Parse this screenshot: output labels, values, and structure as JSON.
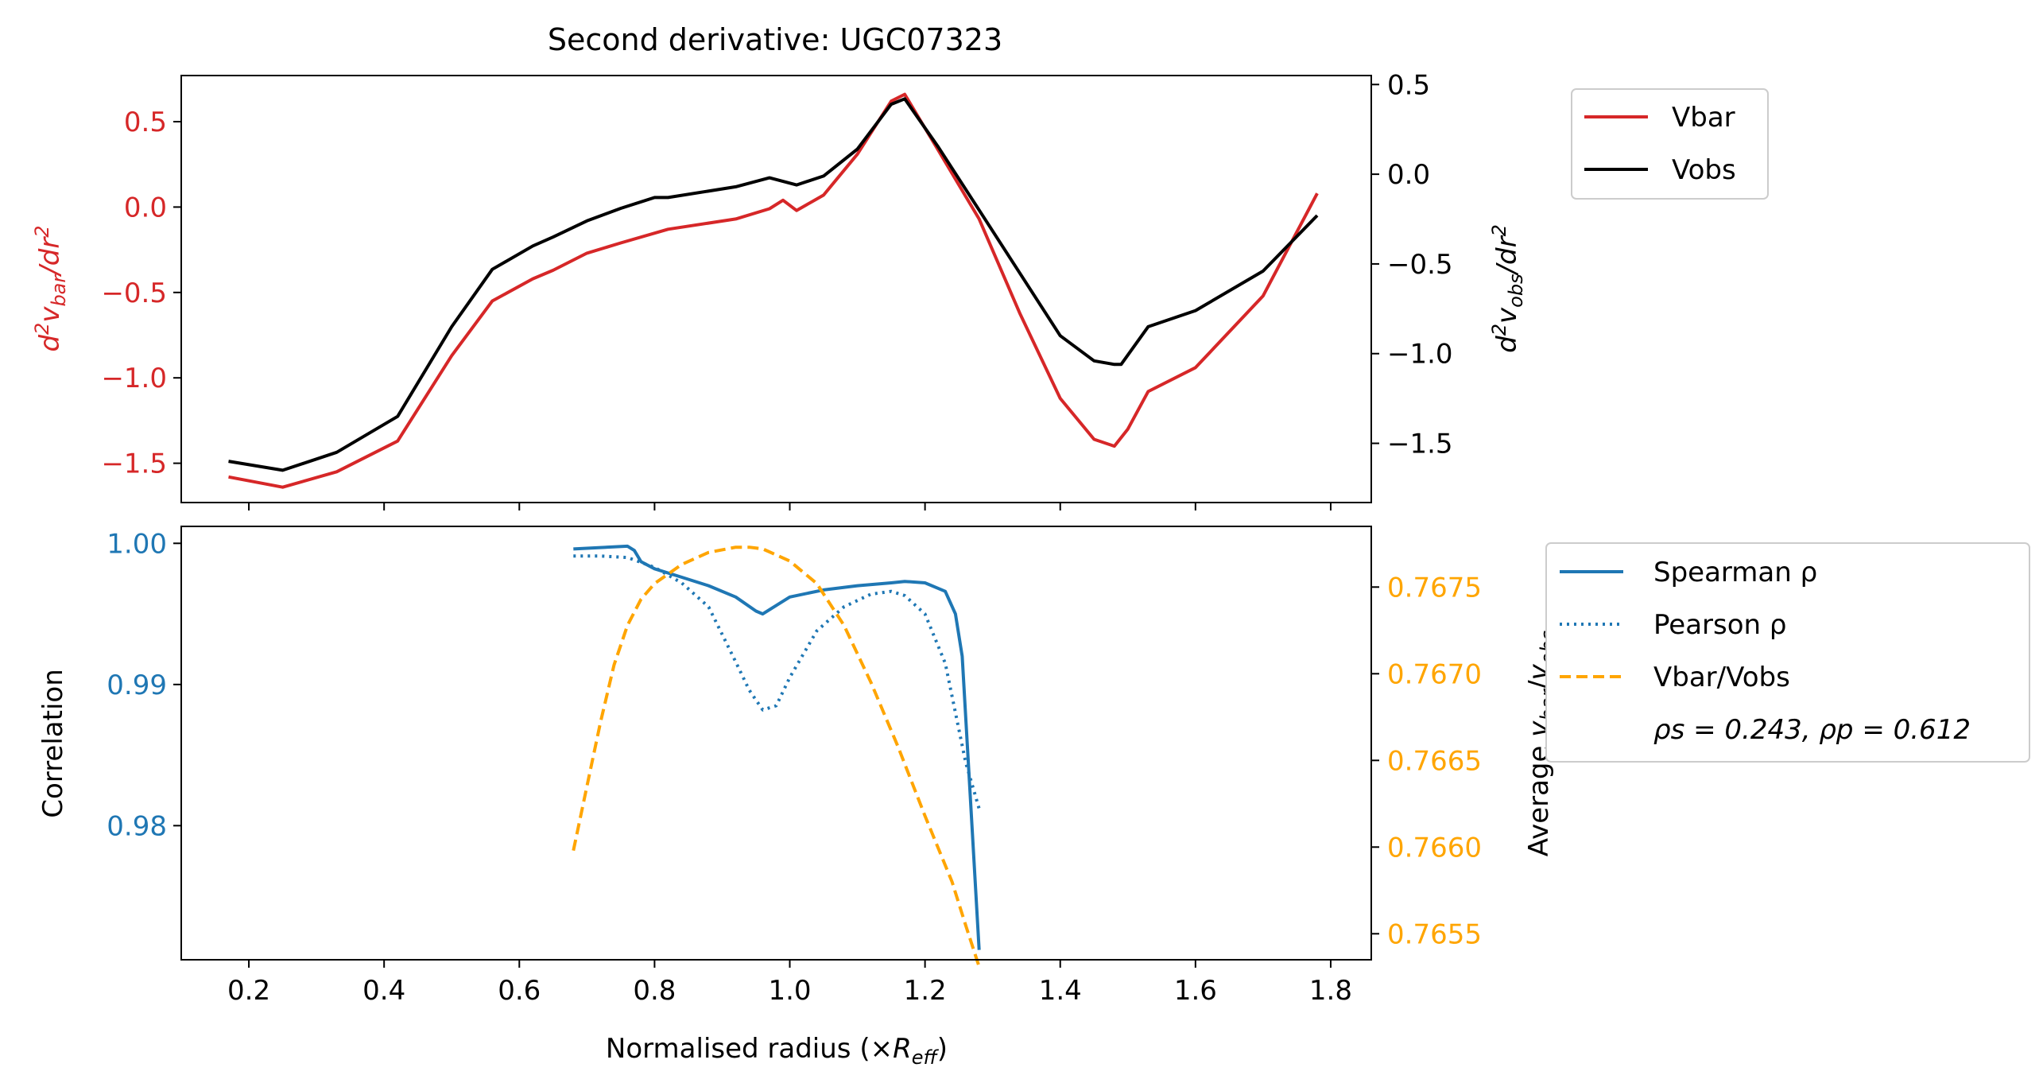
{
  "figure": {
    "title": "Second derivative: UGC07323"
  },
  "colors": {
    "vbar": "#d62728",
    "vobs": "#000000",
    "corr": "#1f77b4",
    "ratio": "#ffa500",
    "axis": "#000000"
  },
  "chart_data": [
    {
      "type": "line",
      "title": "Second derivative: UGC07323",
      "xlim": [
        0.1,
        1.86
      ],
      "xticks": [
        0.2,
        0.4,
        0.6,
        0.8,
        1.0,
        1.2,
        1.4,
        1.6,
        1.8
      ],
      "left_axis": {
        "label": "d²v_bar/dr²",
        "label_main": "d",
        "label_sup1": "2",
        "label_v": "v",
        "label_sub": "bar",
        "label_tail": "/dr",
        "label_sup2": "2",
        "ylim": [
          -1.73,
          0.77
        ],
        "ticks": [
          0.5,
          0.0,
          -0.5,
          -1.0,
          -1.5
        ],
        "tick_labels": [
          "0.5",
          "0.0",
          "−0.5",
          "−1.0",
          "−1.5"
        ]
      },
      "right_axis": {
        "label": "d²v_obs/dr²",
        "label_main": "d",
        "label_sup1": "2",
        "label_v": "v",
        "label_sub": "obs",
        "label_tail": "/dr",
        "label_sup2": "2",
        "ylim": [
          -1.83,
          0.55
        ],
        "ticks": [
          0.5,
          0.0,
          -0.5,
          -1.0,
          -1.5
        ],
        "tick_labels": [
          "0.5",
          "0.0",
          "−0.5",
          "−1.0",
          "−1.5"
        ]
      },
      "legend": {
        "placement": "outside-right-top",
        "entries": [
          "Vbar",
          "Vobs"
        ]
      },
      "series": [
        {
          "name": "Vbar",
          "axis": "left",
          "x": [
            0.17,
            0.25,
            0.33,
            0.42,
            0.5,
            0.56,
            0.62,
            0.65,
            0.7,
            0.75,
            0.82,
            0.92,
            0.97,
            0.99,
            1.01,
            1.05,
            1.1,
            1.15,
            1.17,
            1.22,
            1.28,
            1.34,
            1.4,
            1.45,
            1.48,
            1.5,
            1.53,
            1.6,
            1.7,
            1.78
          ],
          "y": [
            -1.58,
            -1.64,
            -1.55,
            -1.37,
            -0.87,
            -0.55,
            -0.42,
            -0.37,
            -0.27,
            -0.21,
            -0.13,
            -0.07,
            -0.01,
            0.04,
            -0.02,
            0.07,
            0.31,
            0.62,
            0.66,
            0.33,
            -0.07,
            -0.62,
            -1.12,
            -1.36,
            -1.4,
            -1.3,
            -1.08,
            -0.94,
            -0.52,
            0.08
          ]
        },
        {
          "name": "Vobs",
          "axis": "right",
          "x": [
            0.17,
            0.25,
            0.33,
            0.42,
            0.5,
            0.56,
            0.62,
            0.65,
            0.7,
            0.75,
            0.8,
            0.82,
            0.92,
            0.97,
            0.99,
            1.01,
            1.05,
            1.1,
            1.15,
            1.17,
            1.22,
            1.28,
            1.34,
            1.4,
            1.45,
            1.48,
            1.49,
            1.53,
            1.6,
            1.7,
            1.78
          ],
          "y": [
            -1.6,
            -1.65,
            -1.55,
            -1.35,
            -0.85,
            -0.53,
            -0.4,
            -0.35,
            -0.26,
            -0.19,
            -0.13,
            -0.13,
            -0.07,
            -0.02,
            -0.04,
            -0.06,
            -0.01,
            0.14,
            0.39,
            0.42,
            0.15,
            -0.2,
            -0.55,
            -0.9,
            -1.04,
            -1.06,
            -1.06,
            -0.85,
            -0.76,
            -0.54,
            -0.23
          ]
        }
      ]
    },
    {
      "type": "line",
      "title": "",
      "xlim": [
        0.1,
        1.86
      ],
      "xticks": [
        0.2,
        0.4,
        0.6,
        0.8,
        1.0,
        1.2,
        1.4,
        1.6,
        1.8
      ],
      "xtick_labels": [
        "0.2",
        "0.4",
        "0.6",
        "0.8",
        "1.0",
        "1.2",
        "1.4",
        "1.6",
        "1.8"
      ],
      "xlabel": "Normalised radius (×R_eff)",
      "xlabel_main": "Normalised radius (×",
      "xlabel_R": "R",
      "xlabel_sub": "eff",
      "xlabel_tail": ")",
      "left_axis": {
        "label": "Correlation",
        "ylim": [
          0.9705,
          1.0012
        ],
        "ticks": [
          1.0,
          0.99,
          0.98
        ],
        "tick_labels": [
          "1.00",
          "0.99",
          "0.98"
        ]
      },
      "right_axis": {
        "label": "Average v_bar/v_obs",
        "label_main": "Average ",
        "label_v1": "v",
        "label_sub1": "bar",
        "label_slash": "/",
        "label_v2": "v",
        "label_sub2": "obs",
        "ylim": [
          0.76535,
          0.76785
        ],
        "ticks": [
          0.7675,
          0.767,
          0.7665,
          0.766,
          0.7655
        ],
        "tick_labels": [
          "0.7675",
          "0.7670",
          "0.7665",
          "0.7660",
          "0.7655"
        ]
      },
      "legend": {
        "placement": "outside-right",
        "entries": [
          "Spearman ρ",
          "Pearson ρ",
          "Vbar/Vobs"
        ],
        "stats_text": "ρs = 0.243, ρp = 0.612"
      },
      "series": [
        {
          "name": "Spearman ρ",
          "axis": "left",
          "style": "solid",
          "x": [
            0.68,
            0.72,
            0.76,
            0.77,
            0.78,
            0.8,
            0.84,
            0.88,
            0.92,
            0.95,
            0.96,
            0.98,
            1.0,
            1.05,
            1.1,
            1.15,
            1.17,
            1.2,
            1.23,
            1.245,
            1.255,
            1.28
          ],
          "y": [
            0.9996,
            0.9997,
            0.9998,
            0.9995,
            0.9987,
            0.9982,
            0.9976,
            0.997,
            0.9962,
            0.9952,
            0.995,
            0.9956,
            0.9962,
            0.9967,
            0.997,
            0.9972,
            0.9973,
            0.9972,
            0.9966,
            0.995,
            0.992,
            0.9712
          ]
        },
        {
          "name": "Pearson ρ",
          "axis": "left",
          "style": "dotted",
          "x": [
            0.68,
            0.72,
            0.76,
            0.8,
            0.84,
            0.88,
            0.92,
            0.94,
            0.96,
            0.98,
            1.0,
            1.04,
            1.08,
            1.12,
            1.15,
            1.17,
            1.2,
            1.23,
            1.26,
            1.28
          ],
          "y": [
            0.9991,
            0.9991,
            0.999,
            0.9983,
            0.9972,
            0.9955,
            0.9916,
            0.9896,
            0.9882,
            0.9885,
            0.9905,
            0.9938,
            0.9955,
            0.9964,
            0.9966,
            0.9963,
            0.995,
            0.9915,
            0.9845,
            0.9812
          ]
        },
        {
          "name": "Vbar/Vobs",
          "axis": "right",
          "style": "dashed",
          "x": [
            0.68,
            0.7,
            0.72,
            0.74,
            0.76,
            0.78,
            0.8,
            0.84,
            0.88,
            0.92,
            0.94,
            0.96,
            1.0,
            1.04,
            1.08,
            1.12,
            1.16,
            1.2,
            1.24,
            1.26,
            1.28
          ],
          "y": [
            0.76598,
            0.76635,
            0.76672,
            0.76705,
            0.76728,
            0.76743,
            0.76752,
            0.76763,
            0.7677,
            0.76773,
            0.76773,
            0.76772,
            0.76765,
            0.76752,
            0.76728,
            0.76695,
            0.76658,
            0.76618,
            0.7658,
            0.76555,
            0.76531
          ]
        }
      ]
    }
  ]
}
